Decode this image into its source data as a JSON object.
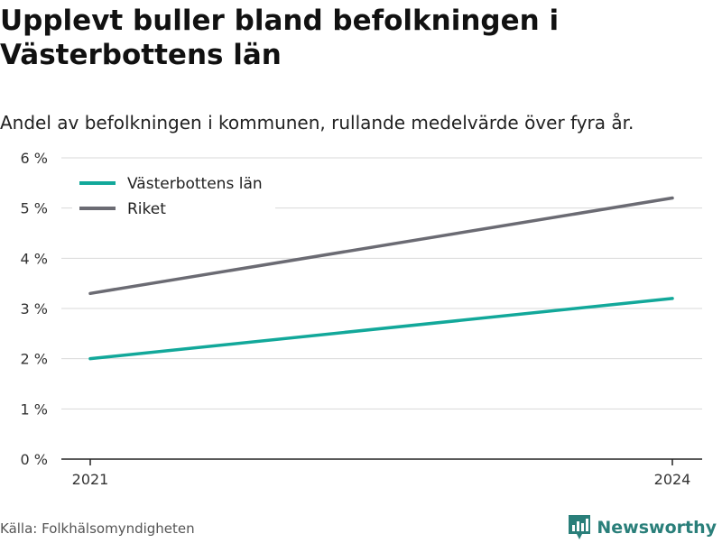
{
  "title": "Upplevt buller bland befolkningen i Västerbottens län",
  "subtitle": "Andel av befolkningen i kommunen, rullande medelvärde över fyra år.",
  "source": "Källa: Folkhälsomyndigheten",
  "brand": {
    "name": "Newsworthy",
    "icon": "newsworthy-logo-icon",
    "color": "#2a7f7a"
  },
  "chart_data": {
    "type": "line",
    "x": [
      "2021",
      "2024"
    ],
    "series": [
      {
        "name": "Västerbottens län",
        "values": [
          2.0,
          3.2
        ],
        "color": "#12a89a"
      },
      {
        "name": "Riket",
        "values": [
          3.3,
          5.2
        ],
        "color": "#6b6b73"
      }
    ],
    "ylim": [
      0,
      6
    ],
    "yticks": [
      0,
      1,
      2,
      3,
      4,
      5,
      6
    ],
    "ytick_labels": [
      "0 %",
      "1 %",
      "2 %",
      "3 %",
      "4 %",
      "5 %",
      "6 %"
    ],
    "xtick_labels": [
      "2021",
      "2024"
    ],
    "grid": true,
    "legend_position": "top-left"
  }
}
